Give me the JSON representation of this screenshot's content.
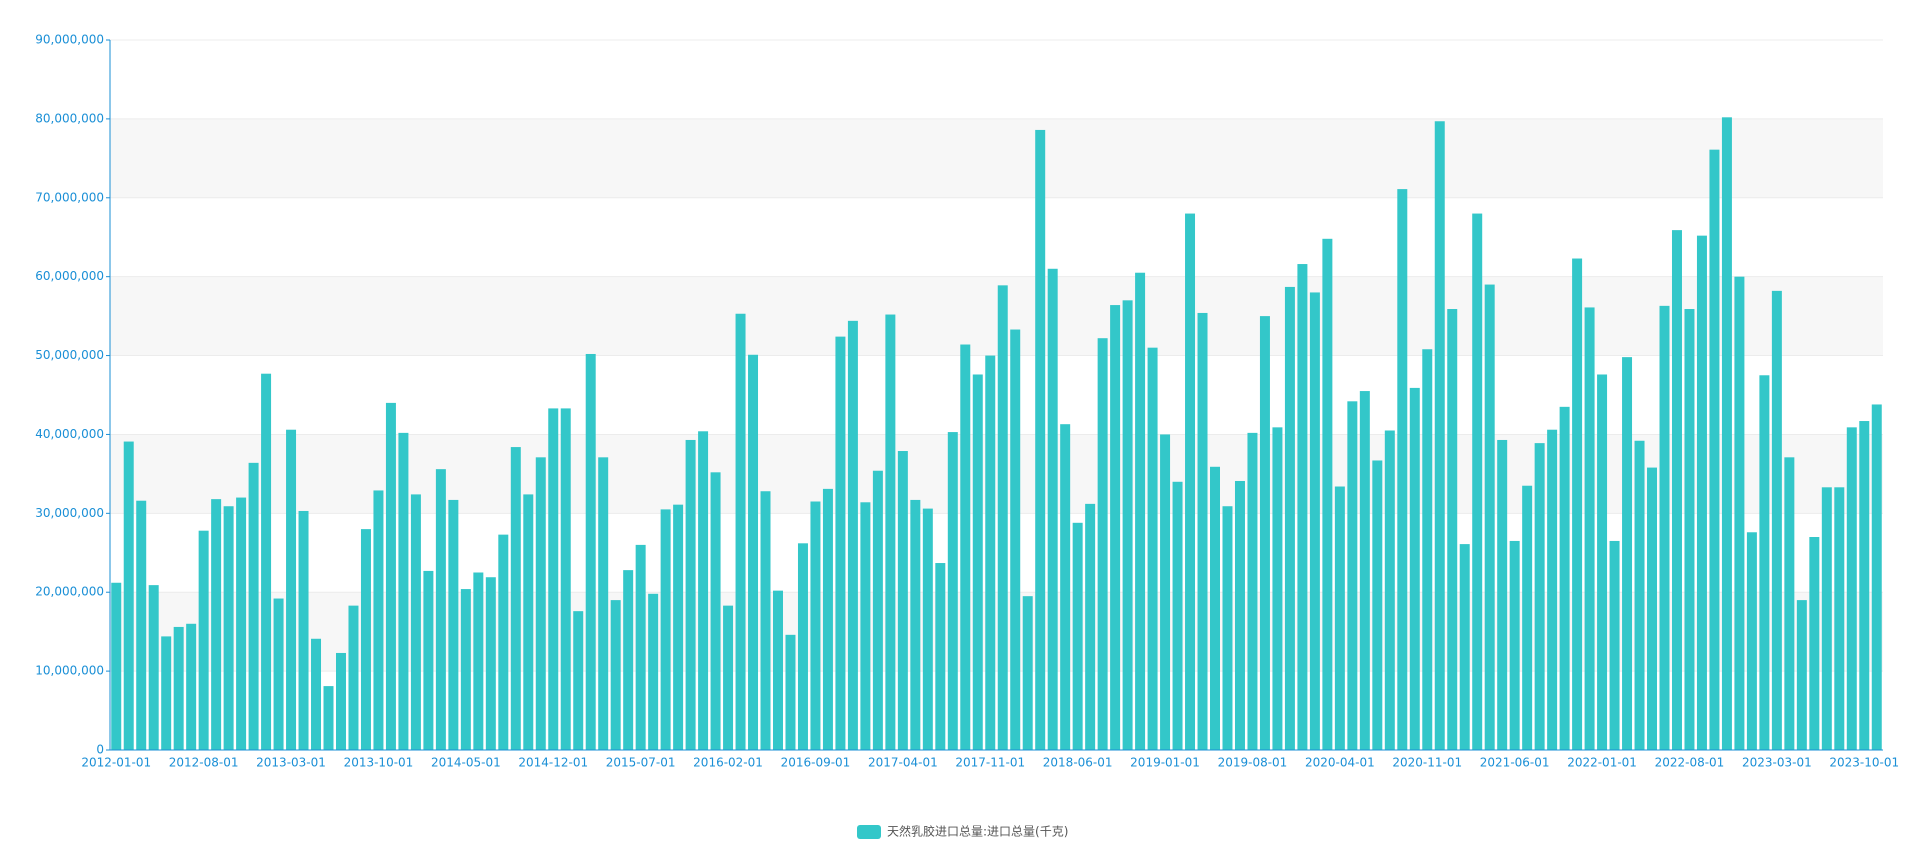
{
  "chart_data": {
    "type": "bar",
    "series": [
      {
        "name": "天然乳胶进口总量:进口总量(千克)",
        "color": "#33c7c9",
        "values": [
          21200000,
          39100000,
          31600000,
          20900000,
          14400000,
          15600000,
          16000000,
          27800000,
          31800000,
          30900000,
          32000000,
          36400000,
          47700000,
          19200000,
          40600000,
          30300000,
          14100000,
          8100000,
          12300000,
          18300000,
          28000000,
          32900000,
          44000000,
          40200000,
          32400000,
          22700000,
          35600000,
          31700000,
          20400000,
          22500000,
          21900000,
          27300000,
          38400000,
          32400000,
          37100000,
          43300000,
          43300000,
          17600000,
          50200000,
          37100000,
          19000000,
          22800000,
          26000000,
          19800000,
          30500000,
          31100000,
          39300000,
          40400000,
          35200000,
          18300000,
          55300000,
          50100000,
          32800000,
          20200000,
          14600000,
          26200000,
          31500000,
          33100000,
          52400000,
          54400000,
          31400000,
          35400000,
          55200000,
          37900000,
          31700000,
          30600000,
          23700000,
          40300000,
          51400000,
          47600000,
          50000000,
          58900000,
          53300000,
          19500000,
          78600000,
          61000000,
          41300000,
          28800000,
          31200000,
          52200000,
          56400000,
          57000000,
          60500000,
          51000000,
          40000000,
          34000000,
          68000000,
          55400000,
          35900000,
          30900000,
          34100000,
          40200000,
          55000000,
          40900000,
          58700000,
          61600000,
          58000000,
          64800000,
          33400000,
          44200000,
          45500000,
          36700000,
          40500000,
          71100000,
          45900000,
          50800000,
          79700000,
          55900000,
          26100000,
          68000000,
          59000000,
          39300000,
          26500000,
          33500000,
          38900000,
          40600000,
          43500000,
          62300000,
          56100000,
          47600000,
          26500000,
          49800000,
          39200000,
          35800000,
          56300000,
          65900000,
          55900000,
          65200000,
          76100000,
          80200000,
          60000000,
          27600000,
          47500000,
          58200000,
          37100000,
          19000000,
          27000000,
          33300000,
          33300000,
          40900000,
          41700000,
          43800000
        ]
      }
    ],
    "categories": [
      "2012-01-01",
      null,
      null,
      null,
      null,
      null,
      null,
      "2012-08-01",
      null,
      null,
      null,
      null,
      null,
      null,
      "2013-03-01",
      null,
      null,
      null,
      null,
      null,
      null,
      "2013-10-01",
      null,
      null,
      null,
      null,
      null,
      null,
      "2014-05-01",
      null,
      null,
      null,
      null,
      null,
      null,
      "2014-12-01",
      null,
      null,
      null,
      null,
      null,
      null,
      "2015-07-01",
      null,
      null,
      null,
      null,
      null,
      null,
      "2016-02-01",
      null,
      null,
      null,
      null,
      null,
      null,
      "2016-09-01",
      null,
      null,
      null,
      null,
      null,
      null,
      "2017-04-01",
      null,
      null,
      null,
      null,
      null,
      null,
      "2017-11-01",
      null,
      null,
      null,
      null,
      null,
      null,
      "2018-06-01",
      null,
      null,
      null,
      null,
      null,
      null,
      "2019-01-01",
      null,
      null,
      null,
      null,
      null,
      null,
      "2019-08-01",
      null,
      null,
      null,
      null,
      null,
      null,
      "2020-04-01",
      null,
      null,
      null,
      null,
      null,
      null,
      "2020-11-01",
      null,
      null,
      null,
      null,
      null,
      null,
      "2021-06-01",
      null,
      null,
      null,
      null,
      null,
      null,
      "2022-01-01",
      null,
      null,
      null,
      null,
      null,
      null,
      "2022-08-01",
      null,
      null,
      null,
      null,
      null,
      null,
      "2023-03-01",
      null,
      null,
      null,
      null,
      null,
      null,
      "2023-10-01",
      null
    ],
    "ylim": [
      0,
      90000000
    ],
    "yticks": [
      0,
      {
        "value": 10000000,
        "label": "10,000,000"
      },
      {
        "value": 20000000,
        "label": "20,000,000"
      },
      {
        "value": 30000000,
        "label": "30,000,000"
      },
      {
        "value": 40000000,
        "label": "40,000,000"
      },
      {
        "value": 50000000,
        "label": "50,000,000"
      },
      {
        "value": 60000000,
        "label": "60,000,000"
      },
      {
        "value": 70000000,
        "label": "70,000,000"
      },
      {
        "value": 80000000,
        "label": "80,000,000"
      },
      {
        "value": 90000000,
        "label": "90,000,000"
      }
    ],
    "grid": true,
    "split_area": true,
    "legend": "bottom"
  }
}
